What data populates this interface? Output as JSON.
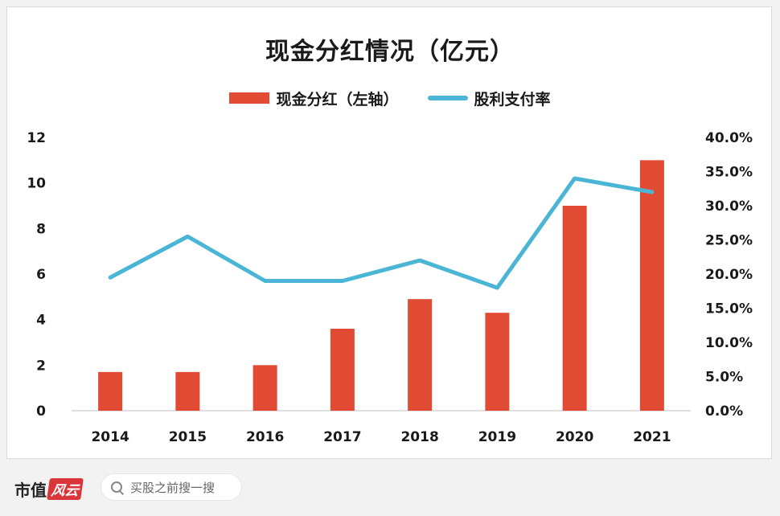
{
  "chart_data": {
    "type": "bar",
    "title": "现金分红情况（亿元）",
    "categories": [
      "2014",
      "2015",
      "2016",
      "2017",
      "2018",
      "2019",
      "2020",
      "2021"
    ],
    "series": [
      {
        "name": "现金分红（左轴）",
        "type": "bar",
        "axis": "left",
        "color": "#e24b33",
        "values": [
          1.7,
          1.7,
          2.0,
          3.6,
          4.9,
          4.3,
          9.0,
          11.0
        ]
      },
      {
        "name": "股利支付率",
        "type": "line",
        "axis": "right",
        "color": "#4bb5d6",
        "values": [
          0.195,
          0.255,
          0.19,
          0.19,
          0.22,
          0.18,
          0.34,
          0.32
        ]
      }
    ],
    "y_left": {
      "ylim": [
        0,
        12
      ],
      "ticks": [
        "0",
        "2",
        "4",
        "6",
        "8",
        "10",
        "12"
      ]
    },
    "y_right": {
      "ylim": [
        0,
        0.4
      ],
      "ticks": [
        "0.0%",
        "5.0%",
        "10.0%",
        "15.0%",
        "20.0%",
        "25.0%",
        "30.0%",
        "35.0%",
        "40.0%"
      ]
    },
    "grid": false,
    "legend": "top-center"
  },
  "footer": {
    "brand_text": "市值",
    "brand_chip": "风云",
    "search_placeholder": "买股之前搜一搜",
    "search_icon": "search-icon"
  }
}
